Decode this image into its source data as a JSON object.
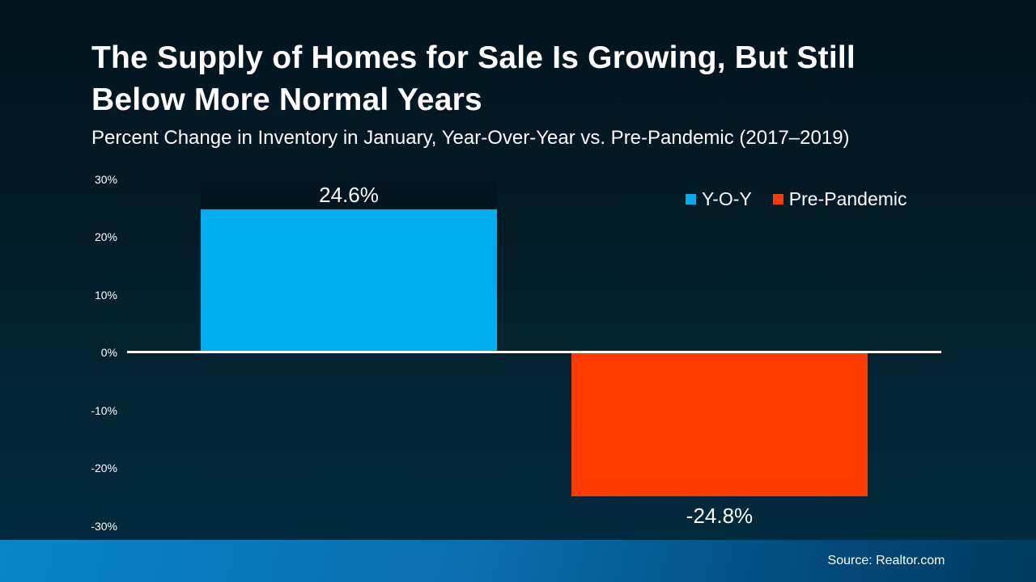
{
  "header": {
    "title_line1": "The Supply of Homes for Sale Is Growing, But Still",
    "title_line2": "Below More Normal Years",
    "subtitle": "Percent Change in Inventory in January, Year-Over-Year vs. Pre-Pandemic (2017–2019)"
  },
  "colors": {
    "background_top": "#02141d",
    "background_bottom": "#002b41",
    "axis_line": "#ffffff",
    "footer_gradient_left": "#0884c8",
    "footer_gradient_right": "#003a5e",
    "yoy_blue": "#00aeef",
    "pre_pandemic_orange": "#ff3b00"
  },
  "chart_data": {
    "type": "bar",
    "title": "Percent Change in Inventory in January, Year-Over-Year vs. Pre-Pandemic (2017–2019)",
    "xlabel": "",
    "ylabel": "Percent Change in Inventory",
    "ylim": [
      -30,
      30
    ],
    "ytick_interval": 10,
    "yticks": [
      "30%",
      "20%",
      "10%",
      "0%",
      "-10%",
      "-20%",
      "-30%"
    ],
    "grid": false,
    "legend_position": "top-right",
    "series": [
      {
        "name": "Y-O-Y",
        "value": 24.6,
        "label": "24.6%",
        "color": "#00aeef"
      },
      {
        "name": "Pre-Pandemic",
        "value": -24.8,
        "label": "-24.8%",
        "color": "#ff3b00"
      }
    ]
  },
  "legend": {
    "items": [
      {
        "label": "Y-O-Y"
      },
      {
        "label": "Pre-Pandemic"
      }
    ]
  },
  "footer": {
    "source": "Source: Realtor.com"
  }
}
